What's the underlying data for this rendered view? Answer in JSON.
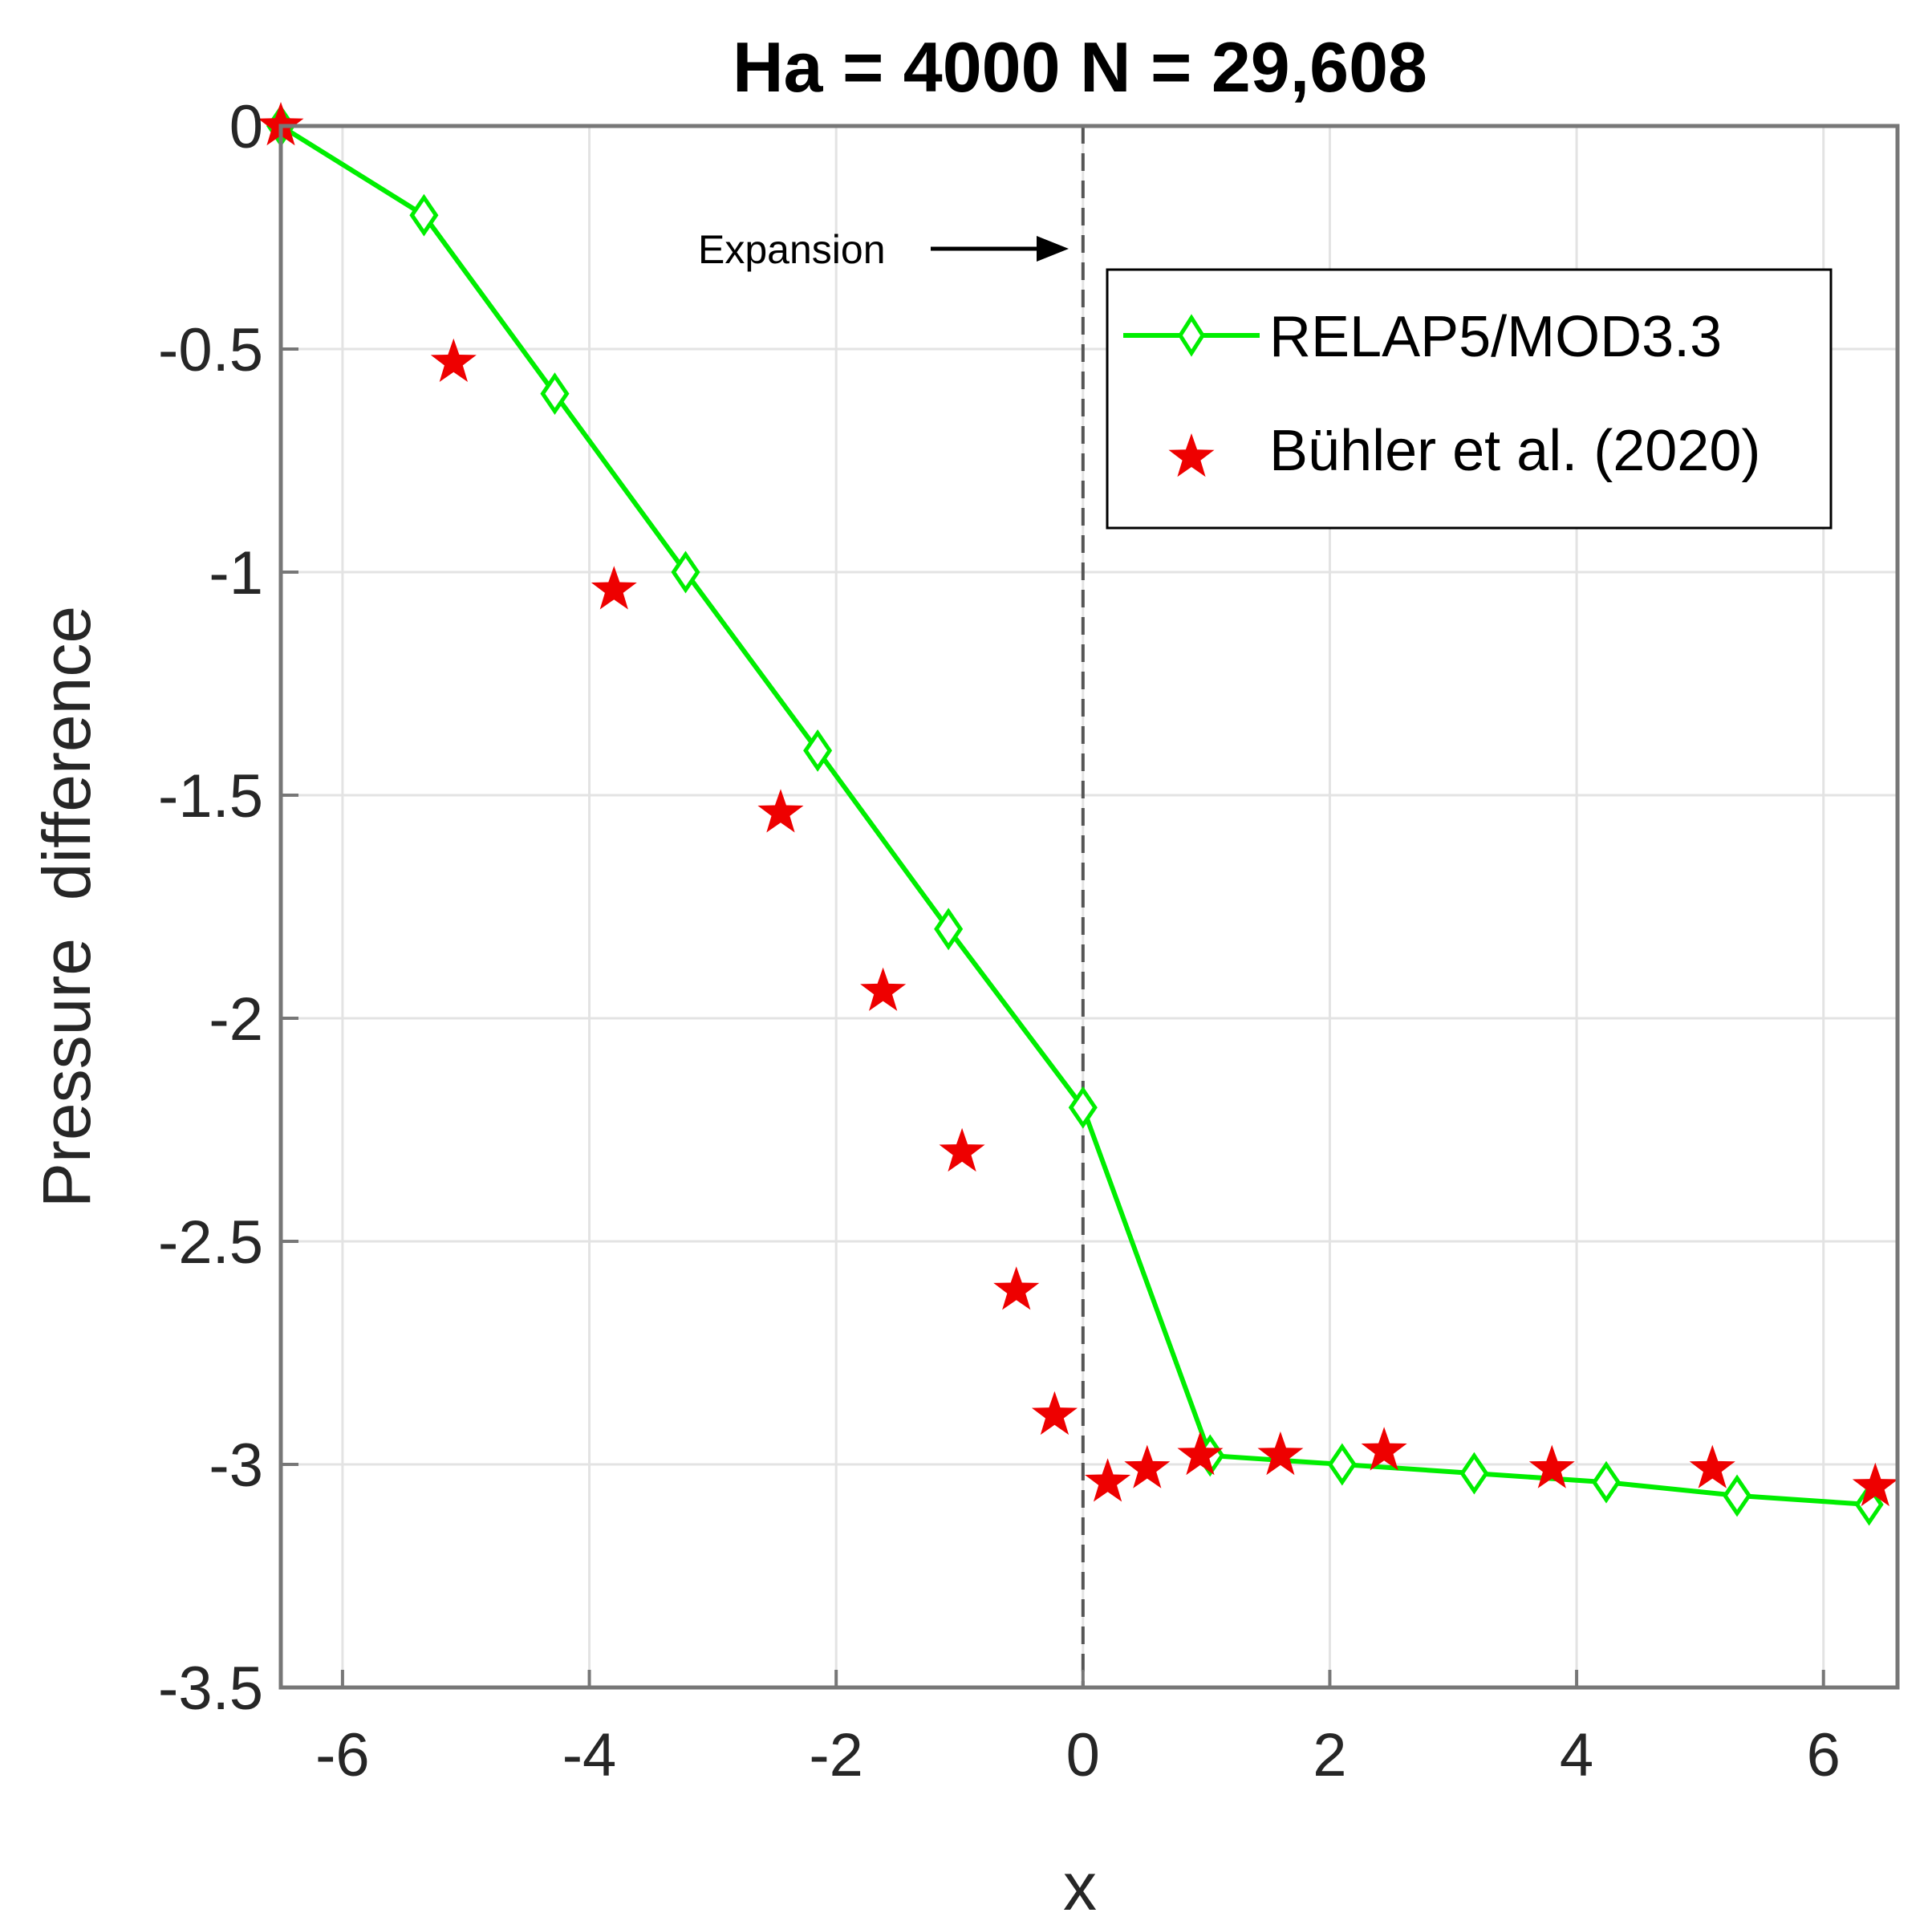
{
  "chart_data": {
    "type": "line",
    "title": "Ha = 4000 N = 29,608",
    "xlabel": "x",
    "ylabel": "Pressure  difference",
    "xlim": [
      -6.5,
      6.6
    ],
    "ylim": [
      -3.5,
      0
    ],
    "xticks": [
      -6,
      -4,
      -2,
      0,
      2,
      4,
      6
    ],
    "xtick_labels": [
      "-6",
      "-4",
      "-2",
      "0",
      "2",
      "4",
      "6"
    ],
    "yticks": [
      0,
      -0.5,
      -1,
      -1.5,
      -2,
      -2.5,
      -3,
      -3.5
    ],
    "ytick_labels": [
      "0",
      "-0.5",
      "-1",
      "-1.5",
      "-2",
      "-2.5",
      "-3",
      "-3.5"
    ],
    "grid": true,
    "legend_position": "top-right",
    "series": [
      {
        "name": "RELAP5/MOD3.3",
        "style": "line-diamond",
        "color": "#00ee00",
        "x": [
          -6.5,
          -5.34,
          -4.28,
          -3.22,
          -2.15,
          -1.09,
          0.0,
          1.03,
          2.1,
          3.17,
          4.24,
          5.3,
          6.37
        ],
        "y": [
          0.0,
          -0.2,
          -0.6,
          -1.0,
          -1.4,
          -1.8,
          -2.2,
          -2.98,
          -3.0,
          -3.02,
          -3.04,
          -3.07,
          -3.09
        ]
      },
      {
        "name": "Bühler et al. (2020)",
        "style": "star",
        "color": "#ee0000",
        "x": [
          -6.5,
          -5.1,
          -3.8,
          -2.45,
          -1.62,
          -0.98,
          -0.54,
          -0.23,
          0.2,
          0.52,
          0.95,
          1.6,
          2.44,
          3.8,
          5.1,
          6.42
        ],
        "y": [
          0.0,
          -0.53,
          -1.04,
          -1.54,
          -1.94,
          -2.3,
          -2.61,
          -2.89,
          -3.04,
          -3.01,
          -2.98,
          -2.98,
          -2.97,
          -3.01,
          -3.01,
          -3.05
        ]
      }
    ],
    "annotations": [
      {
        "text": "Expansion",
        "type": "arrow",
        "points_to_x": 0
      }
    ],
    "reference_line": {
      "x": 0,
      "style": "dashed"
    }
  }
}
